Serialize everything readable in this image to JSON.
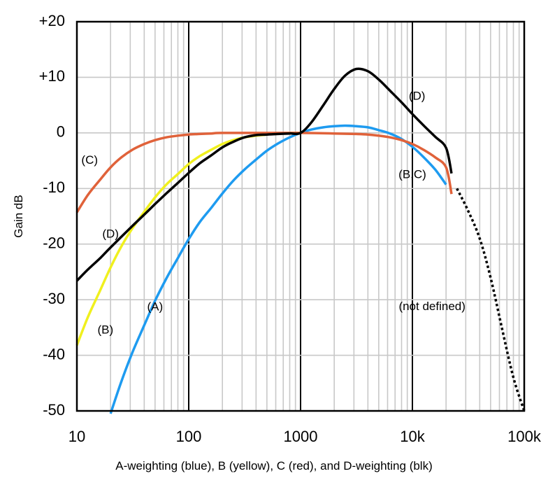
{
  "chart_data": {
    "type": "line",
    "title": "",
    "xlabel": "",
    "ylabel": "Gain dB",
    "caption": "A-weighting (blue), B (yellow), C (red), and D-weighting (blk)",
    "x_scale": "log",
    "xlim": [
      10,
      100000
    ],
    "ylim": [
      -50,
      20
    ],
    "grid": true,
    "x_tick_labels": [
      "10",
      "100",
      "1000",
      "10k",
      "100k"
    ],
    "x_tick_values": [
      10,
      100,
      1000,
      10000,
      100000
    ],
    "y_tick_labels": [
      "+20",
      "+10",
      "0",
      "-10",
      "-20",
      "-30",
      "-40",
      "-50"
    ],
    "y_tick_values": [
      20,
      10,
      0,
      -10,
      -20,
      -30,
      -40,
      -50
    ],
    "series": [
      {
        "name": "A",
        "color": "#1E9BF0",
        "style": "solid",
        "points": [
          [
            20,
            -50.5
          ],
          [
            25,
            -44.7
          ],
          [
            31.5,
            -39.4
          ],
          [
            40,
            -34.6
          ],
          [
            50,
            -30.2
          ],
          [
            63,
            -26.2
          ],
          [
            80,
            -22.5
          ],
          [
            100,
            -19.1
          ],
          [
            125,
            -16.1
          ],
          [
            160,
            -13.4
          ],
          [
            200,
            -10.9
          ],
          [
            250,
            -8.6
          ],
          [
            315,
            -6.6
          ],
          [
            400,
            -4.8
          ],
          [
            500,
            -3.2
          ],
          [
            630,
            -1.9
          ],
          [
            800,
            -0.8
          ],
          [
            1000,
            0
          ],
          [
            1250,
            0.6
          ],
          [
            1600,
            1.0
          ],
          [
            2000,
            1.2
          ],
          [
            2500,
            1.3
          ],
          [
            3150,
            1.2
          ],
          [
            4000,
            1.0
          ],
          [
            5000,
            0.5
          ],
          [
            6300,
            -0.1
          ],
          [
            8000,
            -1.1
          ],
          [
            10000,
            -2.5
          ],
          [
            12500,
            -4.3
          ],
          [
            16000,
            -6.6
          ],
          [
            20000,
            -9.3
          ]
        ]
      },
      {
        "name": "B",
        "color": "#F0F01E",
        "style": "solid",
        "points": [
          [
            10,
            -38.2
          ],
          [
            12.5,
            -33.2
          ],
          [
            16,
            -28.5
          ],
          [
            20,
            -24.2
          ],
          [
            25,
            -20.4
          ],
          [
            31.5,
            -17.1
          ],
          [
            40,
            -14.2
          ],
          [
            50,
            -11.6
          ],
          [
            63,
            -9.3
          ],
          [
            80,
            -7.4
          ],
          [
            100,
            -5.6
          ],
          [
            125,
            -4.2
          ],
          [
            160,
            -3.0
          ],
          [
            200,
            -2.0
          ],
          [
            250,
            -1.3
          ],
          [
            315,
            -0.8
          ],
          [
            400,
            -0.5
          ],
          [
            500,
            -0.3
          ],
          [
            630,
            -0.1
          ],
          [
            800,
            0
          ],
          [
            1000,
            0
          ]
        ]
      },
      {
        "name": "C",
        "color": "#E0623A",
        "style": "solid",
        "points": [
          [
            10,
            -14.3
          ],
          [
            12.5,
            -11.2
          ],
          [
            16,
            -8.5
          ],
          [
            20,
            -6.2
          ],
          [
            25,
            -4.4
          ],
          [
            31.5,
            -3.0
          ],
          [
            40,
            -2.0
          ],
          [
            50,
            -1.3
          ],
          [
            63,
            -0.8
          ],
          [
            80,
            -0.5
          ],
          [
            100,
            -0.3
          ],
          [
            125,
            -0.2
          ],
          [
            160,
            -0.1
          ],
          [
            200,
            0
          ],
          [
            500,
            0
          ],
          [
            1000,
            0
          ],
          [
            2000,
            -0.1
          ],
          [
            3150,
            -0.2
          ],
          [
            4000,
            -0.3
          ],
          [
            5000,
            -0.5
          ],
          [
            6300,
            -0.8
          ],
          [
            8000,
            -1.3
          ],
          [
            10000,
            -2.0
          ],
          [
            12500,
            -3.0
          ],
          [
            16000,
            -4.4
          ],
          [
            20000,
            -6.2
          ],
          [
            22400,
            -11.0
          ]
        ]
      },
      {
        "name": "D",
        "color": "#000000",
        "style": "solid",
        "points": [
          [
            10,
            -26.6
          ],
          [
            12.5,
            -24.6
          ],
          [
            16,
            -22.6
          ],
          [
            20,
            -20.6
          ],
          [
            31.5,
            -16.7
          ],
          [
            40,
            -14.7
          ],
          [
            50,
            -12.8
          ],
          [
            63,
            -10.9
          ],
          [
            80,
            -9.0
          ],
          [
            100,
            -7.2
          ],
          [
            125,
            -5.5
          ],
          [
            160,
            -4.0
          ],
          [
            200,
            -2.6
          ],
          [
            250,
            -1.6
          ],
          [
            315,
            -0.8
          ],
          [
            400,
            -0.4
          ],
          [
            500,
            -0.3
          ],
          [
            630,
            -0.2
          ],
          [
            800,
            -0.1
          ],
          [
            1000,
            0
          ],
          [
            1250,
            1.9
          ],
          [
            1600,
            5.0
          ],
          [
            2000,
            7.9
          ],
          [
            2500,
            10.3
          ],
          [
            3150,
            11.5
          ],
          [
            4000,
            11.1
          ],
          [
            5000,
            9.6
          ],
          [
            6300,
            7.6
          ],
          [
            8000,
            5.5
          ],
          [
            10000,
            3.4
          ],
          [
            12500,
            1.4
          ],
          [
            16000,
            -0.7
          ],
          [
            20000,
            -2.7
          ],
          [
            22400,
            -7.3
          ]
        ]
      },
      {
        "name": "not defined",
        "color": "#000000",
        "style": "dotted",
        "points": [
          [
            25000,
            -10
          ],
          [
            31500,
            -14
          ],
          [
            40000,
            -19
          ],
          [
            50000,
            -26
          ],
          [
            63000,
            -35
          ],
          [
            80000,
            -44
          ],
          [
            100000,
            -50
          ]
        ]
      }
    ],
    "annotations": [
      {
        "text": "(C)",
        "x": 13,
        "y": -5
      },
      {
        "text": "(D)",
        "x": 20,
        "y": -18.3
      },
      {
        "text": "(A)",
        "x": 50,
        "y": -31.4
      },
      {
        "text": "(B)",
        "x": 18,
        "y": -35.5
      },
      {
        "text": "(D)",
        "x": 11000,
        "y": 6.5
      },
      {
        "text": "(B,C)",
        "x": 10000,
        "y": -7.6
      },
      {
        "text": "(not defined)",
        "x": 15000,
        "y": -31.3
      }
    ]
  }
}
